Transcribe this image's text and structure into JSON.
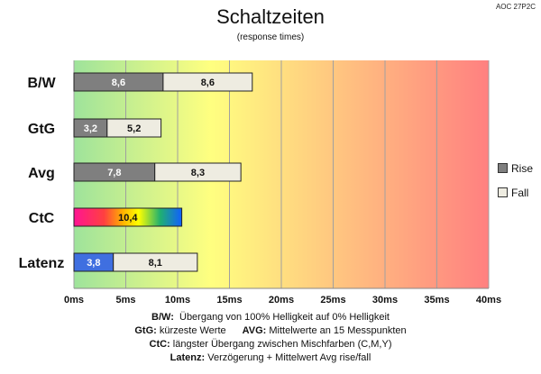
{
  "header": {
    "model": "AOC 27P2C",
    "title": "Schaltzeiten",
    "subtitle": "(response times)"
  },
  "legend": {
    "rise": "Rise",
    "fall": "Fall"
  },
  "notes": [
    {
      "key": "B/W:",
      "text": "Übergang von 100% Helligkeit auf 0% Helligkeit"
    },
    {
      "key": "GtG:",
      "text": "kürzeste  Werte"
    },
    {
      "key": "AVG:",
      "text": "Mittelwerte  an 15 Messpunkten"
    },
    {
      "key": "CtC:",
      "text": "längster Übergang  zwischen Mischfarben (C,M,Y)"
    },
    {
      "key": "Latenz:",
      "text": "Verzögerung  + Mittelwert Avg rise/fall"
    }
  ],
  "colors": {
    "rise": "#7f7f7f",
    "fall": "#eeece1",
    "latency": "#3f6fe0",
    "background_gradient": [
      "#9ee39b",
      "#ffff80",
      "#ff8080"
    ]
  },
  "chart_data": {
    "type": "bar",
    "orientation": "horizontal",
    "stacked": true,
    "categories": [
      "B/W",
      "GtG",
      "Avg",
      "CtC",
      "Latenz"
    ],
    "series": [
      {
        "name": "Rise",
        "values": [
          8.6,
          3.2,
          7.8,
          null,
          null
        ]
      },
      {
        "name": "Fall",
        "values": [
          8.6,
          5.2,
          8.3,
          null,
          8.1
        ]
      }
    ],
    "ctc_value": 10.4,
    "latency_value": 3.8,
    "xlim": [
      0,
      40
    ],
    "xticks": [
      "0ms",
      "5ms",
      "10ms",
      "15ms",
      "20ms",
      "25ms",
      "30ms",
      "35ms",
      "40ms"
    ],
    "grid": true,
    "legend_position": "right"
  }
}
